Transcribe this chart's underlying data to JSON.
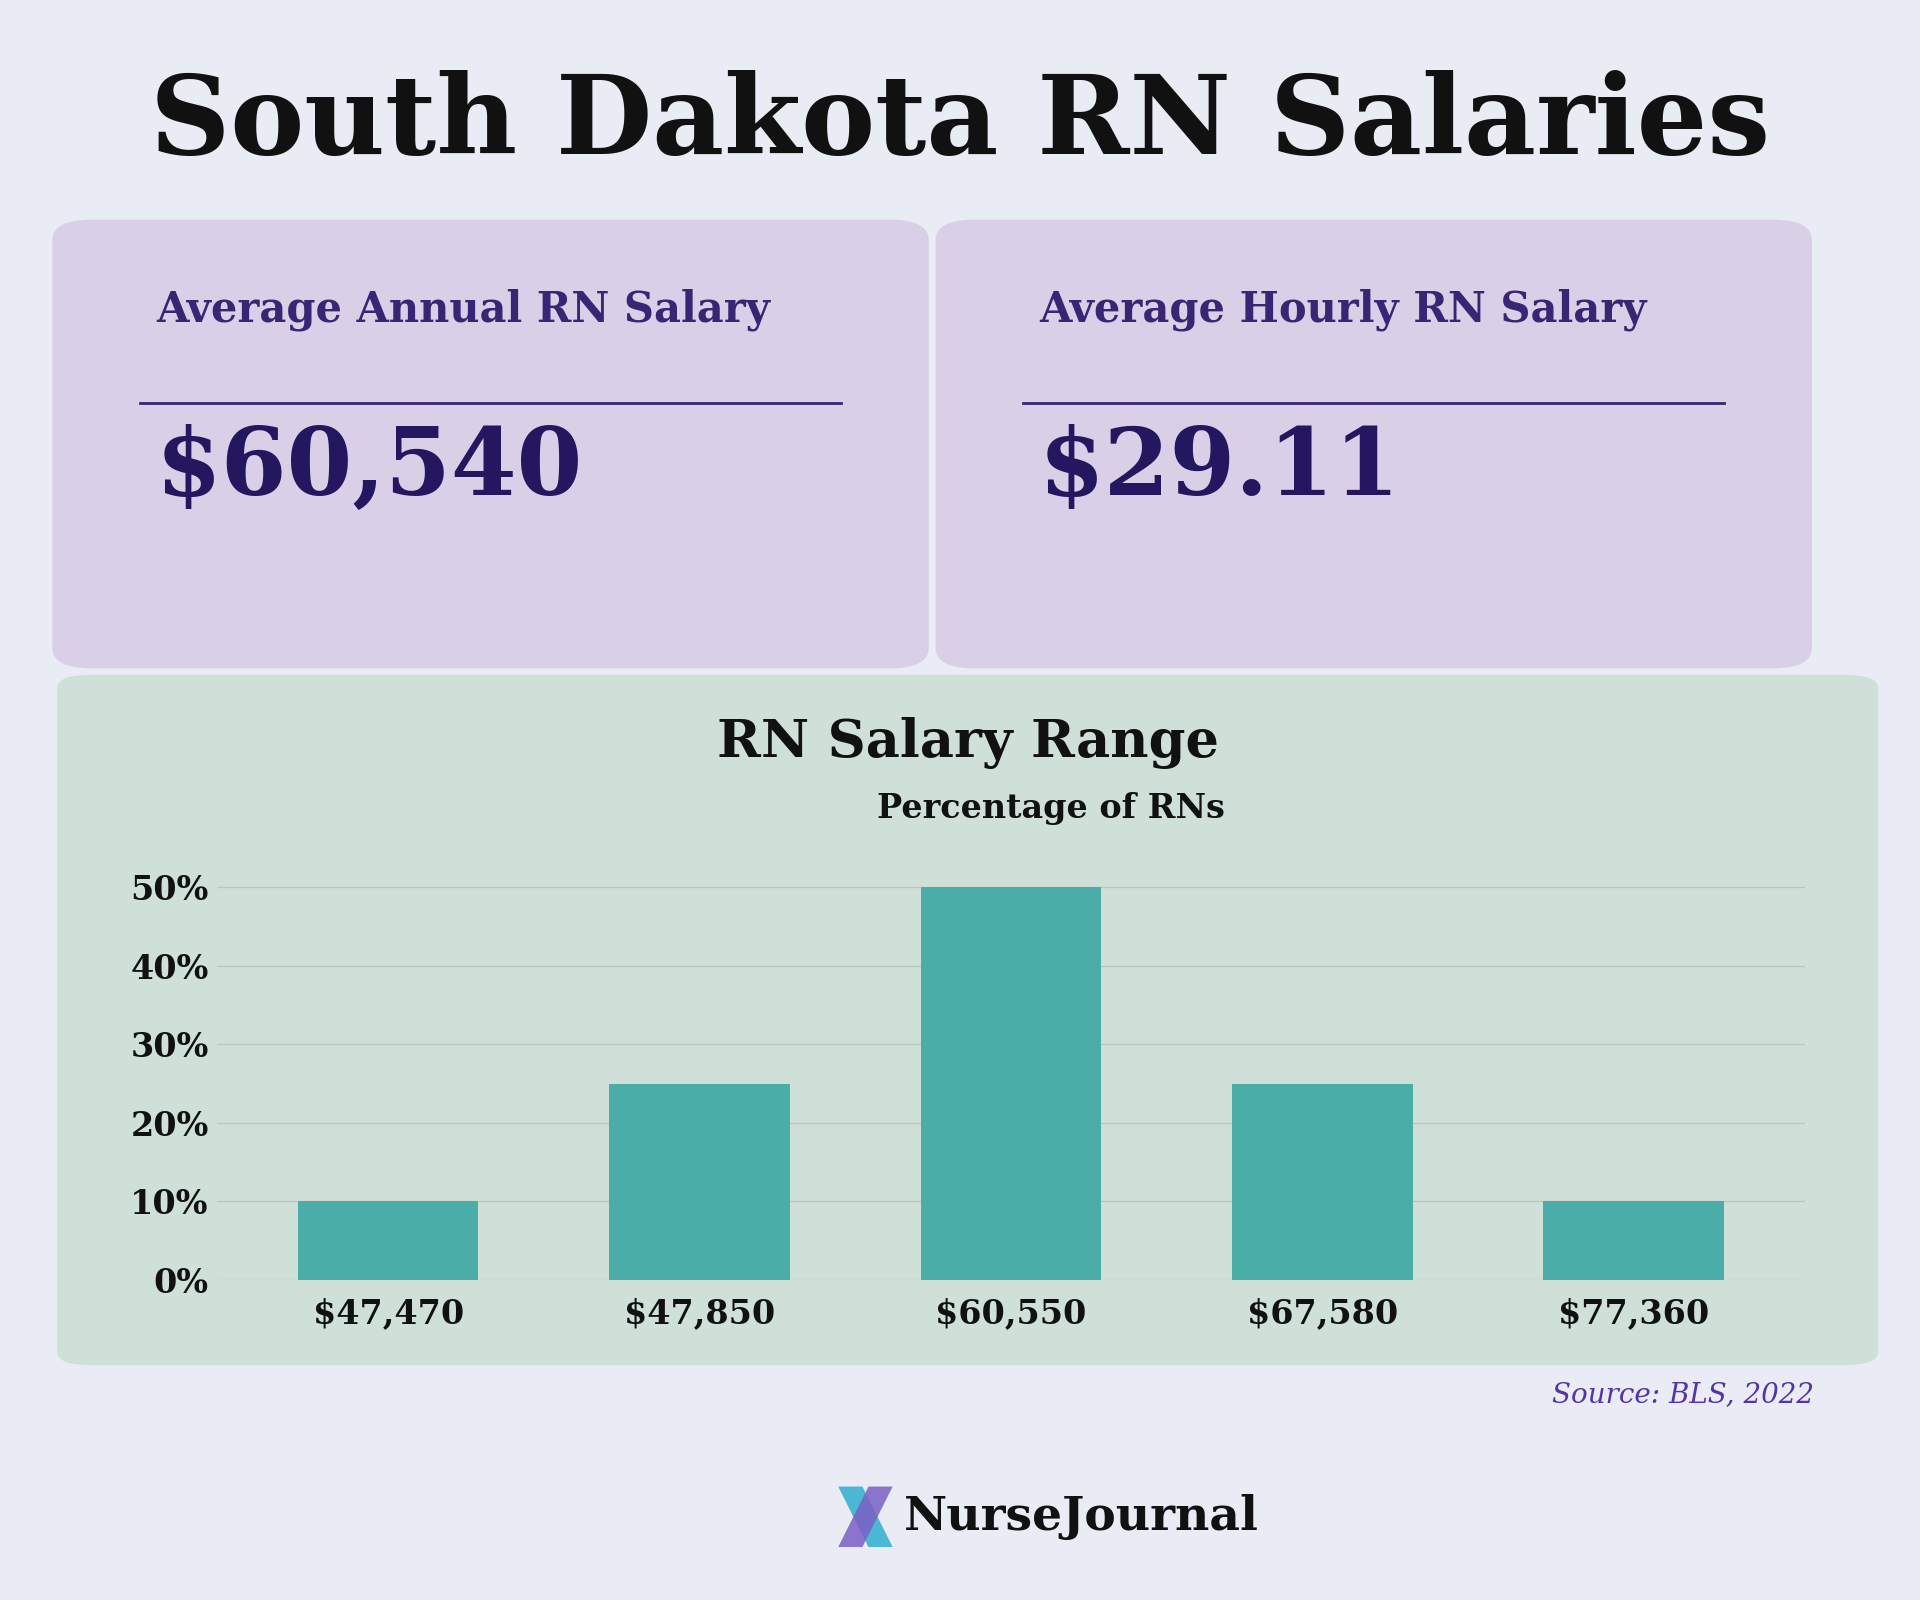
{
  "title": "South Dakota RN Salaries",
  "bg_color": "#eaecf5",
  "card_color": "#d9d0e8",
  "chart_bg_color": "#cfe0d8",
  "annual_label": "Average Annual RN Salary",
  "annual_value": "$60,540",
  "hourly_label": "Average Hourly RN Salary",
  "hourly_value": "$29.11",
  "chart_title": "RN Salary Range",
  "legend_label": "Percentage of RNs",
  "bar_color": "#4aada8",
  "bar_categories": [
    "$47,470",
    "$47,850",
    "$60,550",
    "$67,580",
    "$77,360"
  ],
  "bar_values": [
    10,
    25,
    50,
    25,
    10
  ],
  "yticks": [
    0,
    10,
    20,
    30,
    40,
    50
  ],
  "ytick_labels": [
    "0%",
    "10%",
    "20%",
    "30%",
    "40%",
    "50%"
  ],
  "source_text": "Source: BLS, 2022",
  "source_color": "#5533aa",
  "card_label_color": "#3a2575",
  "card_value_color": "#251660",
  "grid_color": "#b8c8c0",
  "title_color": "#111111",
  "chart_title_color": "#111111",
  "nj_text_color": "#111111",
  "legend_square_color": "#4aada8"
}
